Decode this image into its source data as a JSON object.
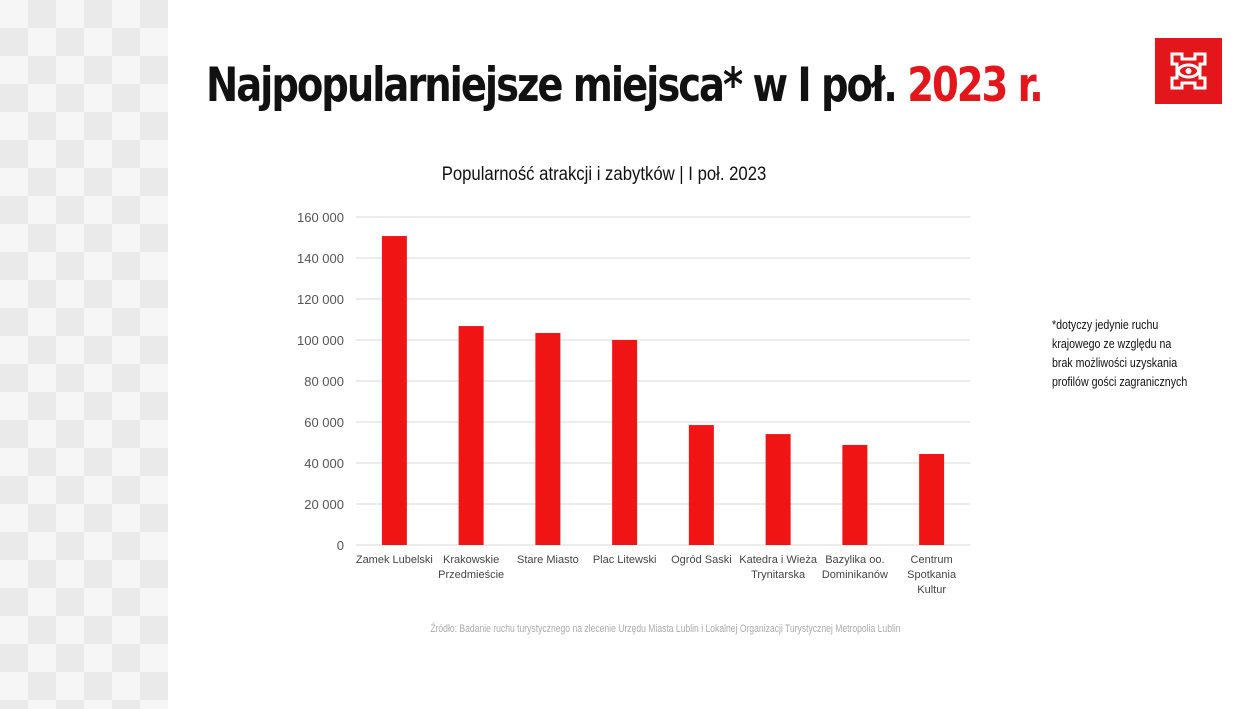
{
  "title": {
    "main": "Najpopularniejsze miejsca* w I poł.",
    "highlight": "2023 r."
  },
  "logo": "Lublin logo",
  "footnote": [
    "*dotyczy jedynie ruchu",
    "krajowego ze względu na",
    "brak możliwości uzyskania",
    "profilów gości zagranicznych"
  ],
  "source": "Źródło: Badanie ruchu turystycznego na zlecenie Urzędu Miasta Lublin i Lokalnej Organizacji Turystycznej Metropolia Lublin",
  "colors": {
    "accent": "#e3171b",
    "bar": "#f01414",
    "grid": "#d9d9d9"
  },
  "chart_data": {
    "type": "bar",
    "title": "Popularność atrakcji i zabytków | I poł. 2023",
    "xlabel": "",
    "ylabel": "",
    "ylim": [
      0,
      160000
    ],
    "yticks": [
      0,
      20000,
      40000,
      60000,
      80000,
      100000,
      120000,
      140000,
      160000
    ],
    "ytick_labels": [
      "0",
      "20 000",
      "40 000",
      "60 000",
      "80 000",
      "100 000",
      "120 000",
      "140 000",
      "160 000"
    ],
    "grid": true,
    "categories": [
      [
        "Zamek Lubelski"
      ],
      [
        "Krakowskie",
        "Przedmieście"
      ],
      [
        "Stare Miasto"
      ],
      [
        "Plac Litewski"
      ],
      [
        "Ogród Saski"
      ],
      [
        "Katedra i Wieża",
        "Trynitarska"
      ],
      [
        "Bazylika oo.",
        "Dominikanów"
      ],
      [
        "Centrum",
        "Spotkania",
        "Kultur"
      ]
    ],
    "values": [
      150700,
      106800,
      103400,
      100000,
      58500,
      54100,
      48800,
      44400
    ]
  }
}
